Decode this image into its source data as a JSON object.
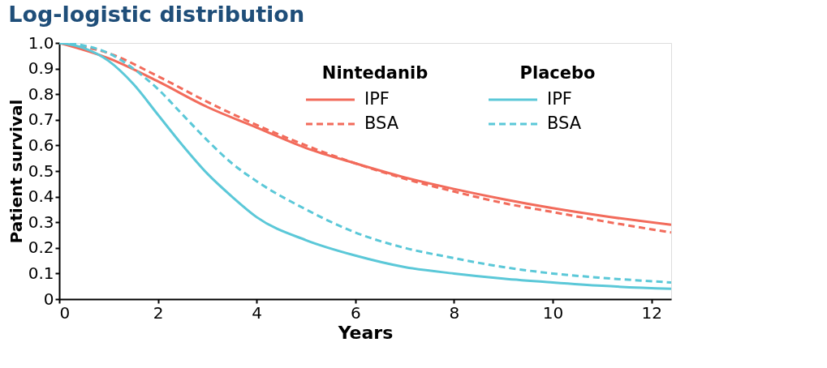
{
  "chart_data": {
    "type": "line",
    "title": "Log-logistic distribution",
    "xlabel": "Years",
    "ylabel": "Patient survival",
    "legend_title": [
      "Nintedanib",
      "Placebo"
    ],
    "legend": "top right",
    "xlim": [
      0,
      12.4
    ],
    "xticks": [
      0,
      2,
      4,
      6,
      8,
      10,
      12
    ],
    "ylim": [
      0,
      1
    ],
    "yticks": [
      0,
      0.1,
      0.2,
      0.3,
      0.4,
      0.5,
      0.6,
      0.7,
      0.8,
      0.9,
      {
        "value": 1,
        "label": "1.0"
      }
    ],
    "grid": false,
    "series": [
      {
        "name": "IPF",
        "color": "#f26b5b",
        "line_style": "solid",
        "x": [
          0,
          1,
          2,
          3,
          4,
          5,
          6,
          7,
          8,
          9,
          10,
          11,
          12.4
        ],
        "values": [
          1.0,
          0.94,
          0.85,
          0.75,
          0.67,
          0.59,
          0.53,
          0.475,
          0.43,
          0.39,
          0.355,
          0.325,
          0.29
        ]
      },
      {
        "name": "BSA",
        "color": "#f26b5b",
        "line_style": "dashed",
        "x": [
          0,
          1,
          2,
          3,
          4,
          5,
          6,
          7,
          8,
          9,
          10,
          11,
          12.4
        ],
        "values": [
          1.0,
          0.96,
          0.87,
          0.77,
          0.68,
          0.6,
          0.53,
          0.47,
          0.42,
          0.375,
          0.34,
          0.305,
          0.26
        ]
      },
      {
        "name": "IPF",
        "color": "#5bc8d8",
        "line_style": "solid",
        "x": [
          0,
          0.5,
          1,
          1.5,
          2,
          2.5,
          3,
          3.5,
          4,
          5,
          6,
          7,
          8,
          9,
          10,
          11,
          12.4
        ],
        "values": [
          1.0,
          0.98,
          0.93,
          0.84,
          0.72,
          0.6,
          0.49,
          0.4,
          0.32,
          0.23,
          0.17,
          0.125,
          0.1,
          0.08,
          0.065,
          0.052,
          0.04
        ]
      },
      {
        "name": "BSA",
        "color": "#5bc8d8",
        "line_style": "dashed",
        "x": [
          0,
          0.5,
          1,
          1.5,
          2,
          2.5,
          3,
          3.5,
          4,
          5,
          6,
          7,
          8,
          9,
          10,
          11,
          12.4
        ],
        "values": [
          1.0,
          0.99,
          0.96,
          0.9,
          0.82,
          0.72,
          0.62,
          0.53,
          0.46,
          0.35,
          0.26,
          0.2,
          0.16,
          0.125,
          0.1,
          0.083,
          0.065
        ]
      }
    ]
  }
}
